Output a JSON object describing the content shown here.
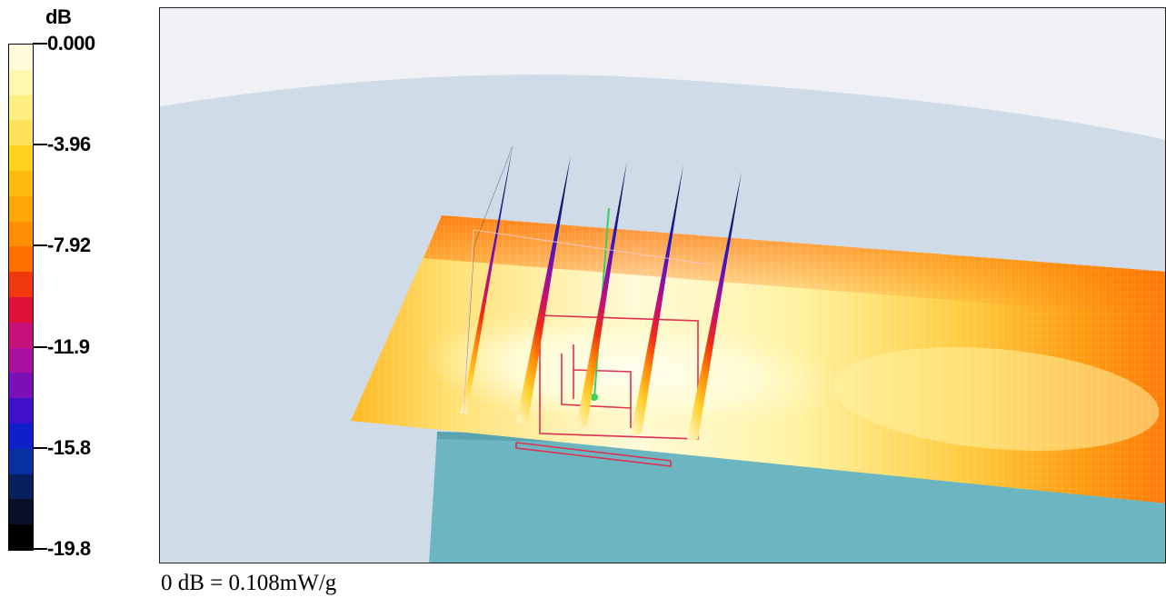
{
  "legend": {
    "unit": "dB",
    "ticks": [
      {
        "label": "0.000",
        "fraction": 0.0
      },
      {
        "label": "-3.96",
        "fraction": 0.2
      },
      {
        "label": "-7.92",
        "fraction": 0.4
      },
      {
        "label": "-11.9",
        "fraction": 0.6
      },
      {
        "label": "-15.8",
        "fraction": 0.8
      },
      {
        "label": "-19.8",
        "fraction": 1.0
      }
    ],
    "colors": [
      "#fffbd8",
      "#fff6b0",
      "#ffee80",
      "#ffe25a",
      "#ffd21e",
      "#ffbc10",
      "#ffa806",
      "#ff8e04",
      "#ff7000",
      "#f0380c",
      "#e0103a",
      "#c8107a",
      "#a810a0",
      "#7c10b8",
      "#4010c8",
      "#1020c8",
      "#0830a0",
      "#082060",
      "#081028",
      "#000000"
    ]
  },
  "viewport": {
    "colors": {
      "background": "#f0f1f5",
      "phantom": "#d0dbe8",
      "base_block": "#6cb6c2",
      "wire_red": "#e03050",
      "probe_green": "#38d060"
    }
  },
  "footer": {
    "reference": "0 dB = 0.108mW/g"
  }
}
